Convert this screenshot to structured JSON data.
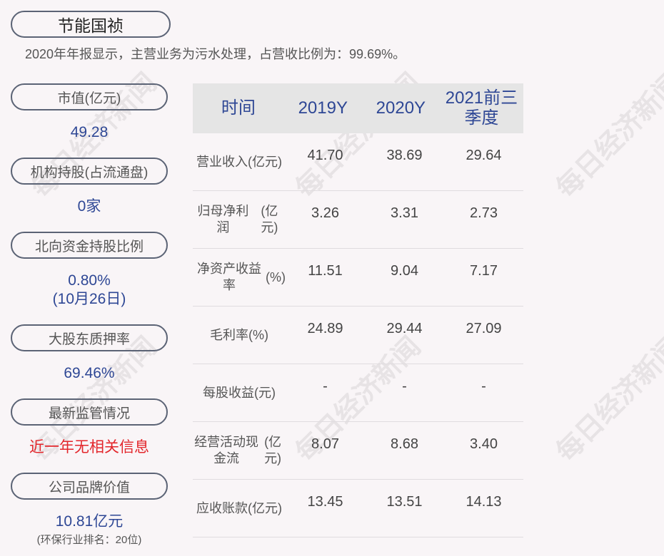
{
  "company": "节能国祯",
  "summary": "2020年年报显示，主营业务为污水处理，占营收比例为：99.69%。",
  "watermark": "每日经济新闻",
  "colors": {
    "accent": "#2e4795",
    "alert": "#e3262b",
    "background": "#f9f5f7"
  },
  "left": {
    "market_cap": {
      "label": "市值(亿元)",
      "value": "49.28"
    },
    "institution": {
      "label": "机构持股(占流通盘)",
      "value": "0家"
    },
    "northbound": {
      "label": "北向资金持股比例",
      "value": "0.80%",
      "date": "(10月26日)"
    },
    "pledge": {
      "label": "大股东质押率",
      "value": "69.46%"
    },
    "regulation": {
      "label": "最新监管情况",
      "value": "近一年无相关信息"
    },
    "brand": {
      "label": "公司品牌价值",
      "value": "10.81亿元",
      "note": "(环保行业排名：20位)"
    }
  },
  "table": {
    "headers": [
      "时间",
      "2019Y",
      "2020Y",
      "2021前三季度"
    ],
    "rows": [
      {
        "label": "营业收入",
        "unit": "(亿元)",
        "values": [
          "41.70",
          "38.69",
          "29.64"
        ]
      },
      {
        "label": "归母净利润",
        "unit": "(亿元)",
        "values": [
          "3.26",
          "3.31",
          "2.73"
        ]
      },
      {
        "label": "净资产收益率",
        "unit": "(%)",
        "values": [
          "11.51",
          "9.04",
          "7.17"
        ]
      },
      {
        "label": "毛利率",
        "unit": "(%)",
        "values": [
          "24.89",
          "29.44",
          "27.09"
        ]
      },
      {
        "label": "每股收益",
        "unit": "(元)",
        "values": [
          "-",
          "-",
          "-"
        ]
      },
      {
        "label": "经营活动现金流",
        "unit": "(亿元)",
        "values": [
          "8.07",
          "8.68",
          "3.40"
        ]
      },
      {
        "label": "应收账款",
        "unit": "(亿元)",
        "values": [
          "13.45",
          "13.51",
          "14.13"
        ]
      }
    ]
  }
}
